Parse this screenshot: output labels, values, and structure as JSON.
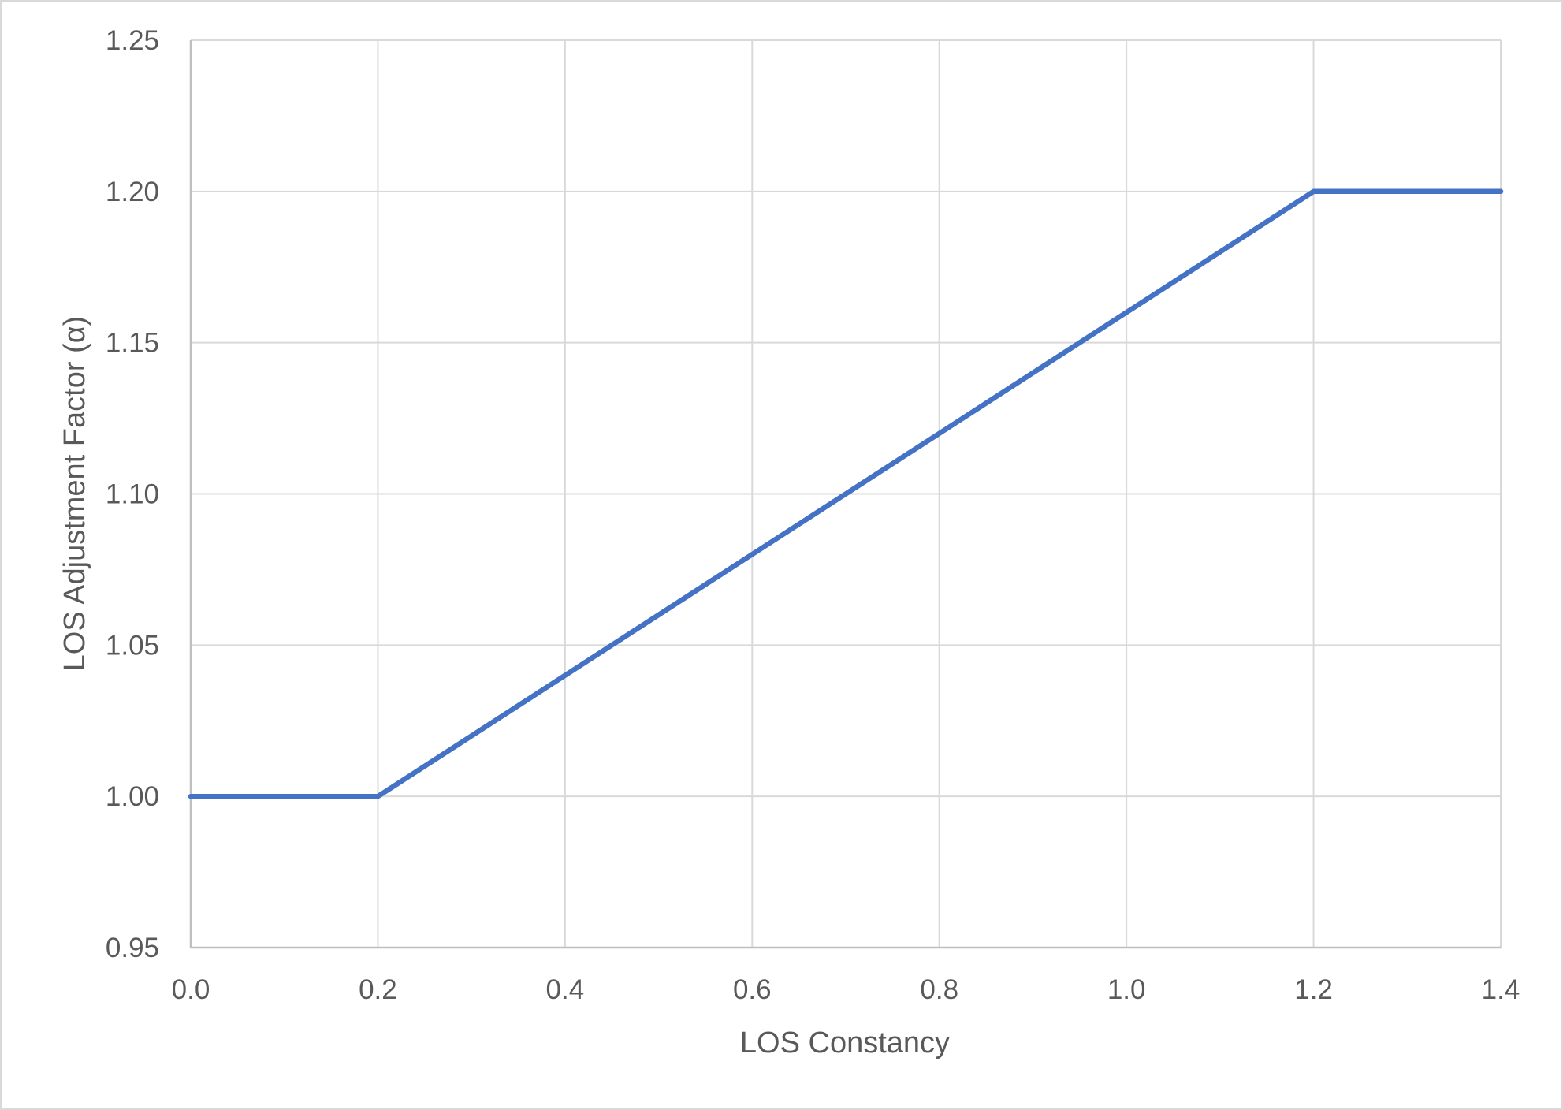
{
  "chart_data": {
    "type": "line",
    "title": "",
    "xlabel": "LOS Constancy",
    "ylabel": "LOS Adjustment Factor (α)",
    "xlim": [
      0.0,
      1.4
    ],
    "ylim": [
      0.95,
      1.25
    ],
    "x_ticks": [
      "0.0",
      "0.2",
      "0.4",
      "0.6",
      "0.8",
      "1.0",
      "1.2",
      "1.4"
    ],
    "y_ticks": [
      "0.95",
      "1.00",
      "1.05",
      "1.10",
      "1.15",
      "1.20",
      "1.25"
    ],
    "grid": true,
    "legend": null,
    "series": [
      {
        "name": "LOS Adjustment Factor",
        "color": "#4472C4",
        "x": [
          0.0,
          0.2,
          0.4,
          0.6,
          0.8,
          1.0,
          1.2,
          1.4
        ],
        "y": [
          1.0,
          1.0,
          1.04,
          1.08,
          1.12,
          1.16,
          1.2,
          1.2
        ]
      }
    ]
  },
  "style": {
    "line_color": "#4472C4",
    "grid_color": "#d9d9d9",
    "axis_color": "#bfbfbf",
    "text_color": "#595959",
    "border_color": "#d9d9d9"
  }
}
